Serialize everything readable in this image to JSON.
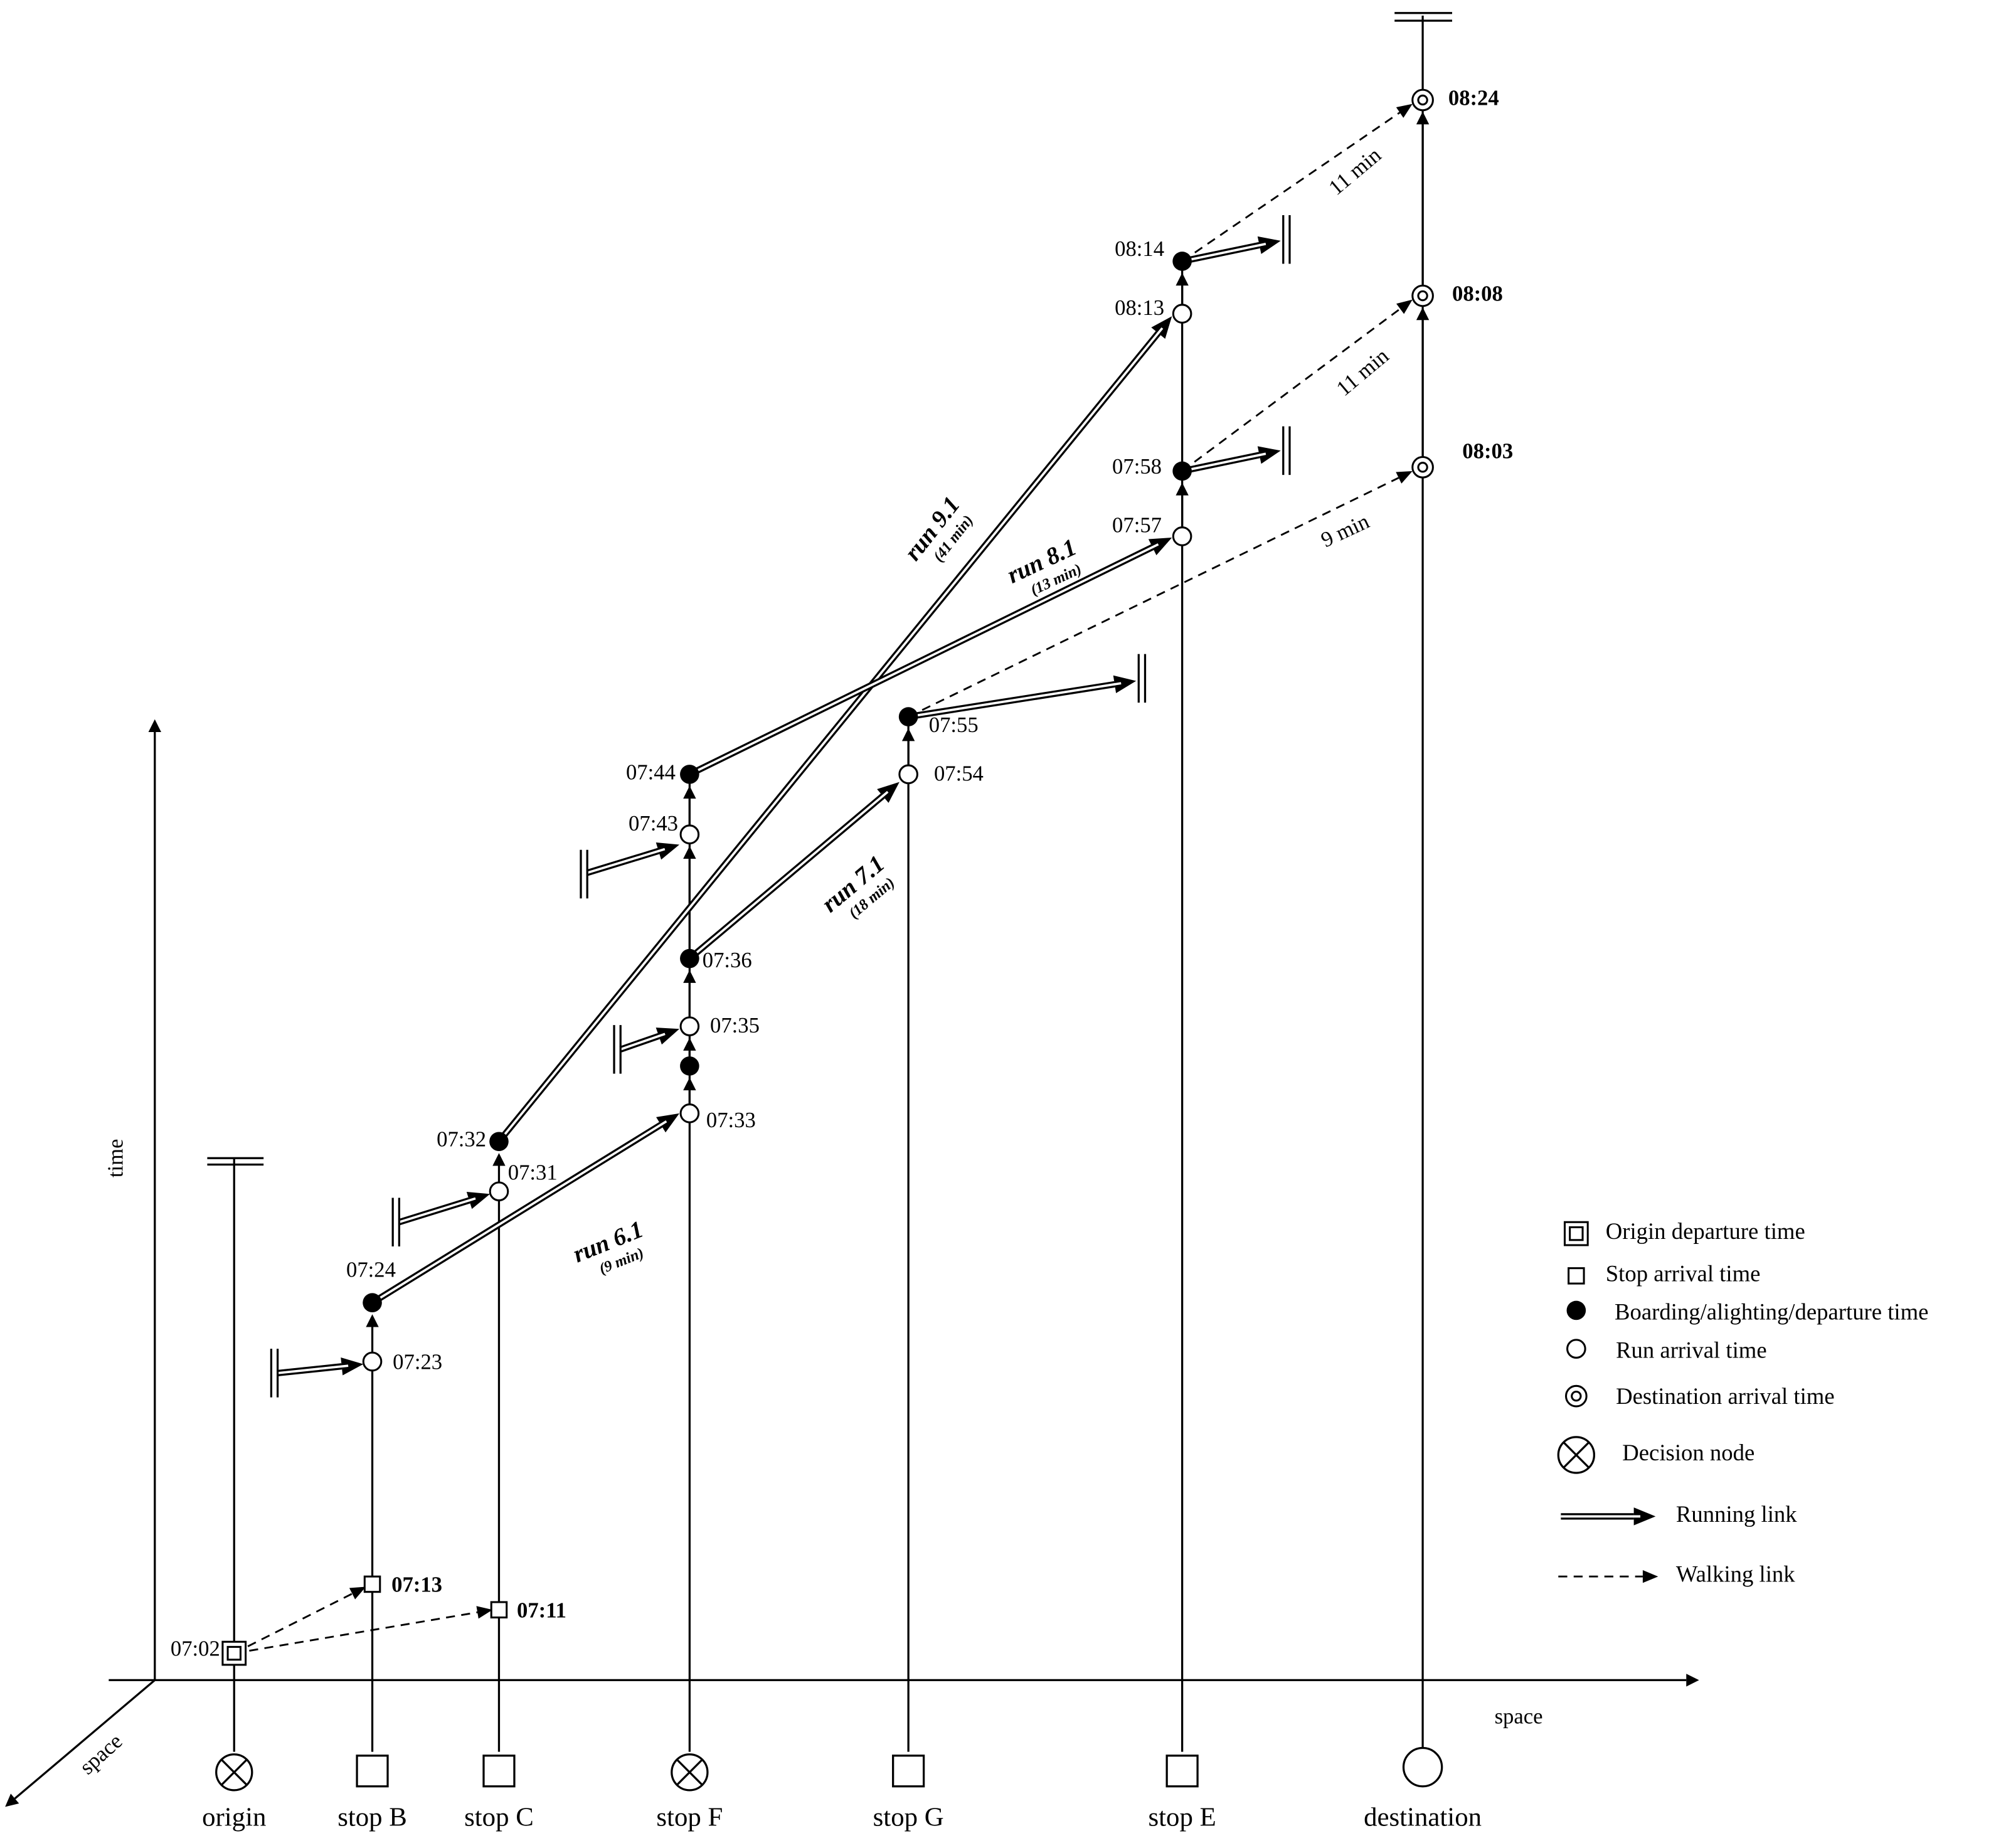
{
  "axes": {
    "vertical": "time",
    "horizontal": "space",
    "depth": "space"
  },
  "stations": [
    "origin",
    "stop B",
    "stop C",
    "stop F",
    "stop G",
    "stop E",
    "destination"
  ],
  "time_labels": [
    "07:02",
    "07:13",
    "07:11",
    "07:23",
    "07:24",
    "07:31",
    "07:32",
    "07:33",
    "07:35",
    "07:36",
    "07:43",
    "07:44",
    "07:54",
    "07:55",
    "07:57",
    "07:58",
    "08:13",
    "08:14",
    "08:03",
    "08:08",
    "08:24"
  ],
  "runs": [
    {
      "name": "run 6.1",
      "duration": "(9 min)"
    },
    {
      "name": "run 7.1",
      "duration": "(18 min)"
    },
    {
      "name": "run 8.1",
      "duration": "(13 min)"
    },
    {
      "name": "run 9.1",
      "duration": "(41 min)"
    }
  ],
  "walk_durations": [
    "11 min",
    "11 min",
    "9 min"
  ],
  "legend": [
    "Origin departure time",
    "Stop arrival time",
    "Boarding/alighting/departure time",
    "Run arrival time",
    "Destination  arrival time",
    "Decision node",
    "Running link",
    "Walking link"
  ]
}
